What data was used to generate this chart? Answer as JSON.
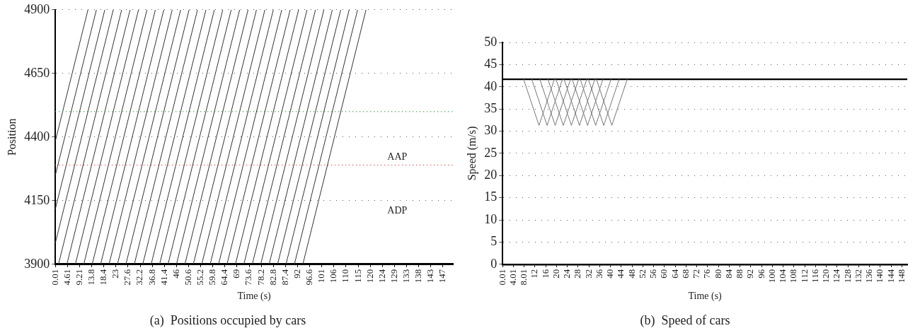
{
  "chart_data": [
    {
      "type": "line",
      "title": "(a)  Positions occupied by cars",
      "xlabel": "Time (s)",
      "ylabel": "Position",
      "marker": "none",
      "grid": "y",
      "legend": false,
      "xlim": [
        0.01,
        151
      ],
      "ylim": [
        3900,
        4900
      ],
      "yticks": [
        3900,
        4150,
        4400,
        4650,
        4900
      ],
      "xticks": [
        0.01,
        4.61,
        9.21,
        {
          "value": 13.81,
          "label": "13.8"
        },
        {
          "value": 18.41,
          "label": "18.4"
        },
        {
          "value": 23.01,
          "label": "23"
        },
        {
          "value": 27.61,
          "label": "27.6"
        },
        {
          "value": 32.21,
          "label": "32.2"
        },
        {
          "value": 36.81,
          "label": "36.8"
        },
        {
          "value": 41.41,
          "label": "41.4"
        },
        {
          "value": 46.01,
          "label": "46"
        },
        {
          "value": 50.61,
          "label": "50.6"
        },
        {
          "value": 55.21,
          "label": "55.2"
        },
        {
          "value": 59.81,
          "label": "59.8"
        },
        {
          "value": 64.41,
          "label": "64.4"
        },
        {
          "value": 69.01,
          "label": "69"
        },
        {
          "value": 73.61,
          "label": "73.6"
        },
        {
          "value": 78.21,
          "label": "78.2"
        },
        {
          "value": 82.81,
          "label": "82.8"
        },
        {
          "value": 87.41,
          "label": "87.4"
        },
        {
          "value": 92.01,
          "label": "92"
        },
        {
          "value": 96.61,
          "label": "96.6"
        },
        {
          "value": 101.21,
          "label": "101"
        },
        {
          "value": 105.81,
          "label": "106"
        },
        {
          "value": 110.41,
          "label": "110"
        },
        {
          "value": 115.01,
          "label": "115"
        },
        {
          "value": 119.61,
          "label": "120"
        },
        {
          "value": 124.21,
          "label": "124"
        },
        {
          "value": 128.81,
          "label": "129"
        },
        {
          "value": 133.41,
          "label": "133"
        },
        {
          "value": 138.01,
          "label": "138"
        },
        {
          "value": 142.61,
          "label": "143"
        },
        {
          "value": 147.21,
          "label": "147"
        }
      ],
      "ref_lines": [
        {
          "axis": "y",
          "value": 4500,
          "color": "#3a9a4a",
          "line_style": "dotted"
        },
        {
          "axis": "y",
          "value": 4290,
          "label": "AAP",
          "color": "#e04848",
          "line_style": "dotted"
        }
      ],
      "annotations": [
        "ADP"
      ],
      "series": [
        {
          "color": "#333333",
          "x": [
            0.01,
            12.4
          ],
          "values": [
            4384,
            4900
          ]
        },
        {
          "color": "#333333",
          "x": [
            0.01,
            15.6
          ],
          "values": [
            4250,
            4900
          ]
        },
        {
          "color": "#333333",
          "x": [
            0.01,
            18.8
          ],
          "values": [
            4117,
            4900
          ]
        },
        {
          "color": "#333333",
          "x": [
            0.01,
            22.0
          ],
          "values": [
            3984,
            4900
          ]
        },
        {
          "color": "#333333",
          "x": [
            1.2,
            25.2
          ],
          "values": [
            3900,
            4900
          ]
        },
        {
          "color": "#333333",
          "x": [
            4.4,
            28.4
          ],
          "values": [
            3900,
            4900
          ]
        },
        {
          "color": "#333333",
          "x": [
            7.6,
            31.6
          ],
          "values": [
            3900,
            4900
          ]
        },
        {
          "color": "#333333",
          "x": [
            10.8,
            34.8
          ],
          "values": [
            3900,
            4900
          ]
        },
        {
          "color": "#333333",
          "x": [
            14.0,
            38.0
          ],
          "values": [
            3900,
            4900
          ]
        },
        {
          "color": "#333333",
          "x": [
            17.2,
            41.2
          ],
          "values": [
            3900,
            4900
          ]
        },
        {
          "color": "#333333",
          "x": [
            20.4,
            44.4
          ],
          "values": [
            3900,
            4900
          ]
        },
        {
          "color": "#333333",
          "x": [
            23.6,
            47.6
          ],
          "values": [
            3900,
            4900
          ]
        },
        {
          "color": "#333333",
          "x": [
            26.8,
            50.8
          ],
          "values": [
            3900,
            4900
          ]
        },
        {
          "color": "#333333",
          "x": [
            30.0,
            54.0
          ],
          "values": [
            3900,
            4900
          ]
        },
        {
          "color": "#333333",
          "x": [
            33.2,
            57.2
          ],
          "values": [
            3900,
            4900
          ]
        },
        {
          "color": "#333333",
          "x": [
            36.4,
            60.4
          ],
          "values": [
            3900,
            4900
          ]
        },
        {
          "color": "#333333",
          "x": [
            39.6,
            63.6
          ],
          "values": [
            3900,
            4900
          ]
        },
        {
          "color": "#333333",
          "x": [
            42.8,
            66.8
          ],
          "values": [
            3900,
            4900
          ]
        },
        {
          "color": "#333333",
          "x": [
            46.0,
            70.0
          ],
          "values": [
            3900,
            4900
          ]
        },
        {
          "color": "#333333",
          "x": [
            49.2,
            73.2
          ],
          "values": [
            3900,
            4900
          ]
        },
        {
          "color": "#333333",
          "x": [
            52.4,
            76.4
          ],
          "values": [
            3900,
            4900
          ]
        },
        {
          "color": "#333333",
          "x": [
            55.6,
            79.6
          ],
          "values": [
            3900,
            4900
          ]
        },
        {
          "color": "#333333",
          "x": [
            58.8,
            82.8
          ],
          "values": [
            3900,
            4900
          ]
        },
        {
          "color": "#333333",
          "x": [
            62.0,
            86.0
          ],
          "values": [
            3900,
            4900
          ]
        },
        {
          "color": "#333333",
          "x": [
            65.2,
            89.2
          ],
          "values": [
            3900,
            4900
          ]
        },
        {
          "color": "#333333",
          "x": [
            68.4,
            92.4
          ],
          "values": [
            3900,
            4900
          ]
        },
        {
          "color": "#333333",
          "x": [
            71.6,
            95.6
          ],
          "values": [
            3900,
            4900
          ]
        },
        {
          "color": "#333333",
          "x": [
            74.8,
            98.8
          ],
          "values": [
            3900,
            4900
          ]
        },
        {
          "color": "#333333",
          "x": [
            78.0,
            102.0
          ],
          "values": [
            3900,
            4900
          ]
        },
        {
          "color": "#333333",
          "x": [
            81.2,
            105.2
          ],
          "values": [
            3900,
            4900
          ]
        },
        {
          "color": "#333333",
          "x": [
            84.4,
            108.4
          ],
          "values": [
            3900,
            4900
          ]
        },
        {
          "color": "#333333",
          "x": [
            87.6,
            111.6
          ],
          "values": [
            3900,
            4900
          ]
        },
        {
          "color": "#333333",
          "x": [
            90.8,
            114.8
          ],
          "values": [
            3900,
            4900
          ]
        },
        {
          "color": "#333333",
          "x": [
            94.0,
            118.0
          ],
          "values": [
            3900,
            4900
          ]
        }
      ]
    },
    {
      "type": "line",
      "title": "(b)  Speed of cars",
      "xlabel": "Time (s)",
      "ylabel": "Speed (m/s)",
      "marker": "none",
      "grid": "y",
      "legend": false,
      "xlim": [
        0.01,
        150
      ],
      "ylim": [
        0,
        50
      ],
      "yticks": [
        0,
        5,
        10,
        15,
        20,
        25,
        30,
        35,
        40,
        45,
        50
      ],
      "xticks": [
        0.01,
        4.01,
        8.01,
        {
          "value": 12.01,
          "label": "12"
        },
        {
          "value": 16.01,
          "label": "16"
        },
        {
          "value": 20.01,
          "label": "20"
        },
        {
          "value": 24.01,
          "label": "24"
        },
        {
          "value": 28.01,
          "label": "28"
        },
        {
          "value": 32.01,
          "label": "32"
        },
        {
          "value": 36.01,
          "label": "36"
        },
        {
          "value": 40.01,
          "label": "40"
        },
        {
          "value": 44.01,
          "label": "44"
        },
        {
          "value": 48.01,
          "label": "48"
        },
        {
          "value": 52.01,
          "label": "52"
        },
        {
          "value": 56.01,
          "label": "56"
        },
        {
          "value": 60.01,
          "label": "60"
        },
        {
          "value": 64.01,
          "label": "64"
        },
        {
          "value": 68.01,
          "label": "68"
        },
        {
          "value": 72.01,
          "label": "72"
        },
        {
          "value": 76.01,
          "label": "76"
        },
        {
          "value": 80.01,
          "label": "80"
        },
        {
          "value": 84.01,
          "label": "84"
        },
        {
          "value": 88.01,
          "label": "88"
        },
        {
          "value": 92.01,
          "label": "92"
        },
        {
          "value": 96.01,
          "label": "96"
        },
        {
          "value": 100.01,
          "label": "100"
        },
        {
          "value": 104.01,
          "label": "104"
        },
        {
          "value": 108.01,
          "label": "108"
        },
        {
          "value": 112.01,
          "label": "112"
        },
        {
          "value": 116.01,
          "label": "116"
        },
        {
          "value": 120.01,
          "label": "120"
        },
        {
          "value": 124.01,
          "label": "124"
        },
        {
          "value": 128.01,
          "label": "128"
        },
        {
          "value": 132.01,
          "label": "132"
        },
        {
          "value": 136.01,
          "label": "136"
        },
        {
          "value": 140.01,
          "label": "140"
        },
        {
          "value": 144.01,
          "label": "144"
        },
        {
          "value": 148.01,
          "label": "148"
        }
      ],
      "series": [
        {
          "color": "#777777",
          "x": [
            7.8,
            13.5,
            19.2
          ],
          "values": [
            41.7,
            31.3,
            41.7
          ]
        },
        {
          "color": "#777777",
          "x": [
            10.8,
            16.5,
            22.2
          ],
          "values": [
            41.7,
            31.3,
            41.7
          ]
        },
        {
          "color": "#777777",
          "x": [
            13.8,
            19.5,
            25.2
          ],
          "values": [
            41.7,
            31.3,
            41.7
          ]
        },
        {
          "color": "#777777",
          "x": [
            16.8,
            22.5,
            28.2
          ],
          "values": [
            41.7,
            31.3,
            41.7
          ]
        },
        {
          "color": "#777777",
          "x": [
            19.8,
            25.5,
            31.2
          ],
          "values": [
            41.7,
            31.3,
            41.7
          ]
        },
        {
          "color": "#777777",
          "x": [
            22.8,
            28.5,
            34.2
          ],
          "values": [
            41.7,
            31.3,
            41.7
          ]
        },
        {
          "color": "#777777",
          "x": [
            25.8,
            31.5,
            37.2
          ],
          "values": [
            41.7,
            31.3,
            41.7
          ]
        },
        {
          "color": "#777777",
          "x": [
            28.8,
            34.5,
            40.2
          ],
          "values": [
            41.7,
            31.3,
            41.7
          ]
        },
        {
          "color": "#777777",
          "x": [
            31.8,
            37.5,
            43.2
          ],
          "values": [
            41.7,
            31.3,
            41.7
          ]
        },
        {
          "color": "#777777",
          "x": [
            34.8,
            40.5,
            46.2
          ],
          "values": [
            41.7,
            31.3,
            41.7
          ]
        },
        {
          "color": "#000000",
          "x": [
            0.01,
            150
          ],
          "values": [
            41.7,
            41.7
          ]
        }
      ]
    }
  ]
}
